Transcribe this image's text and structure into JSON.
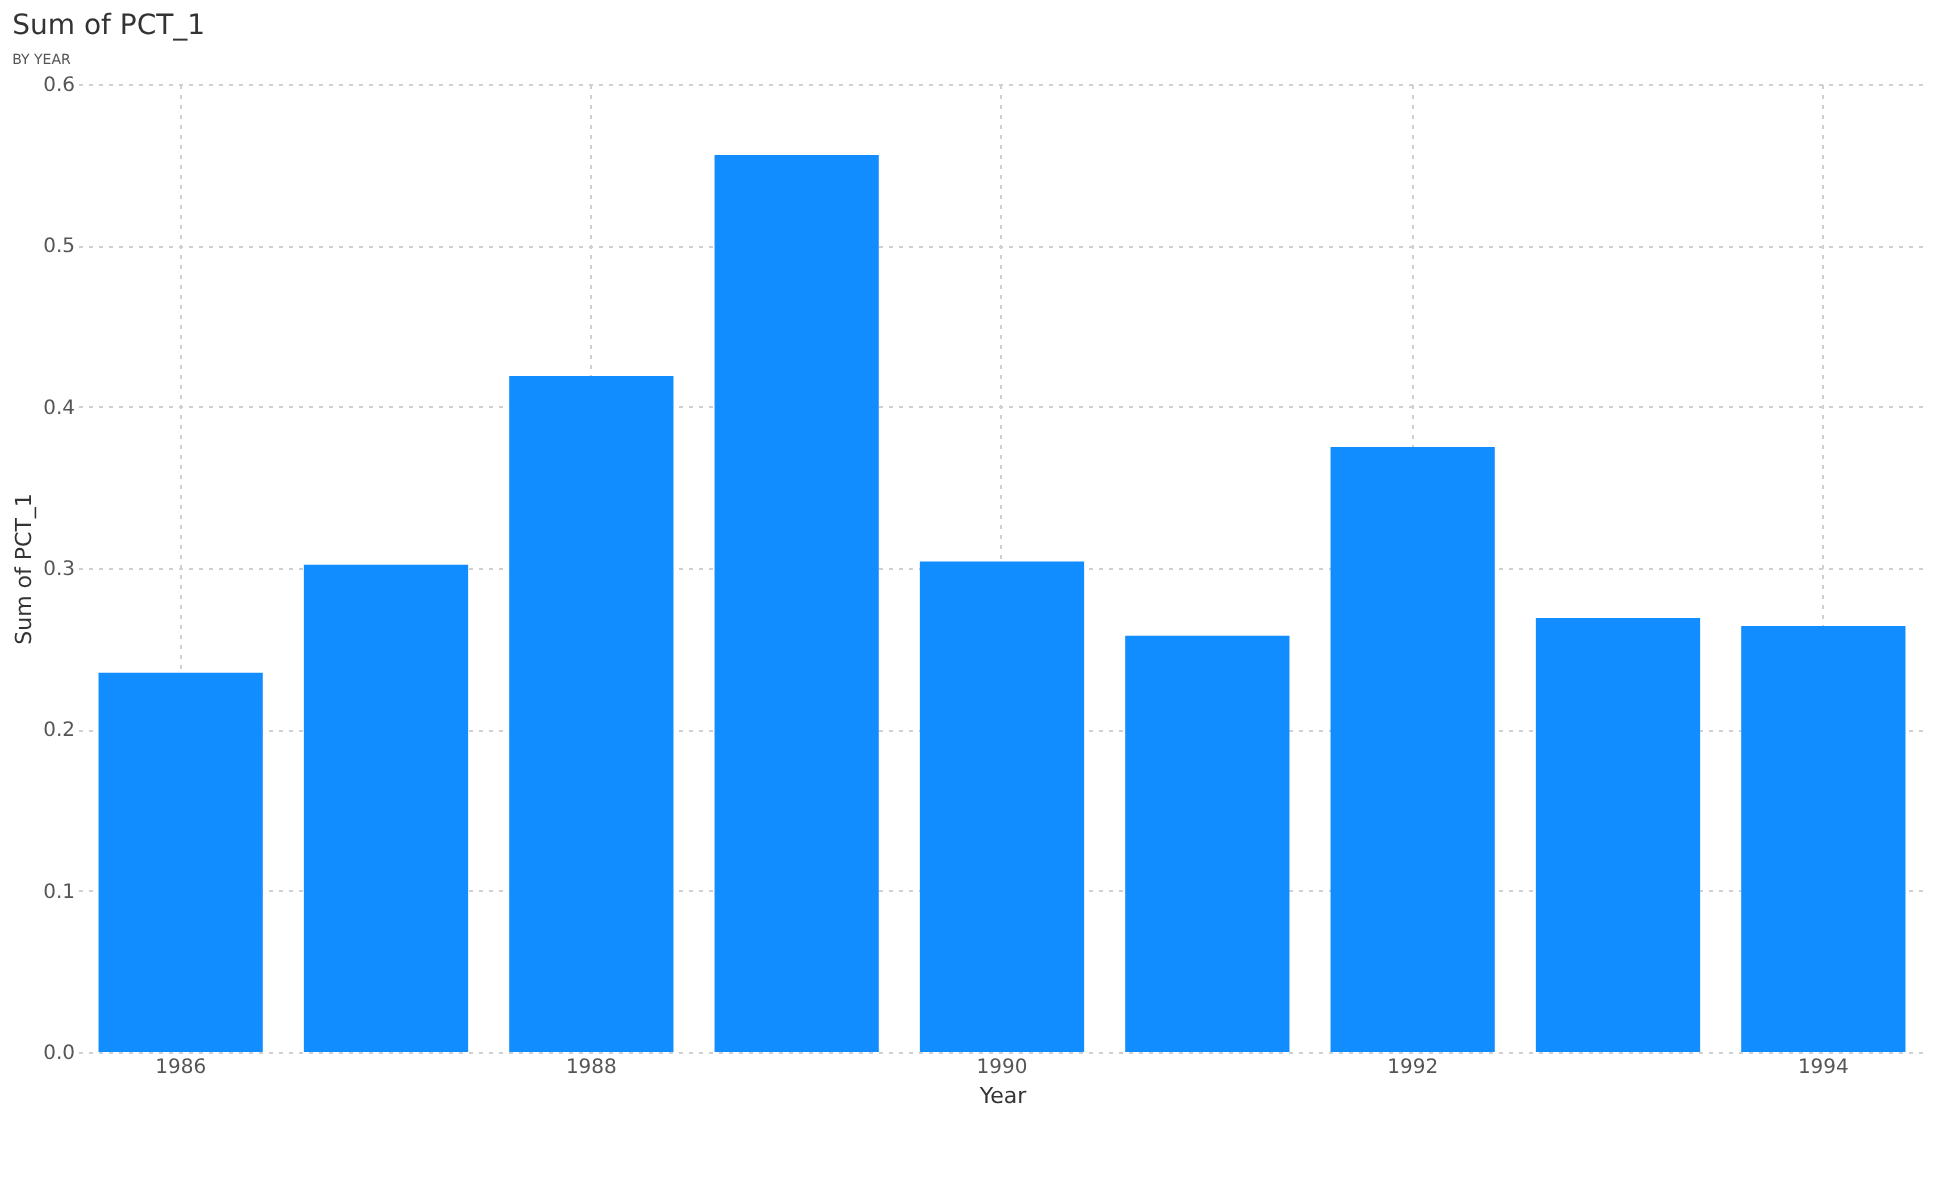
{
  "chart_data": {
    "type": "bar",
    "title": "Sum of PCT_1",
    "subtitle": "BY YEAR",
    "xlabel": "Year",
    "ylabel": "Sum of PCT_1",
    "categories": [
      "1986",
      null,
      "1988",
      null,
      "1990",
      null,
      "1992",
      null,
      "1994"
    ],
    "values": [
      0.235,
      0.302,
      0.419,
      0.556,
      0.304,
      0.258,
      0.375,
      0.269,
      0.264
    ],
    "color": "#118dff",
    "ylim": [
      0,
      0.6
    ],
    "yticks": [
      {
        "value": 0,
        "label": "0.0"
      },
      0.1,
      0.2,
      0.3,
      0.4,
      0.5,
      0.6
    ],
    "grid": true
  }
}
